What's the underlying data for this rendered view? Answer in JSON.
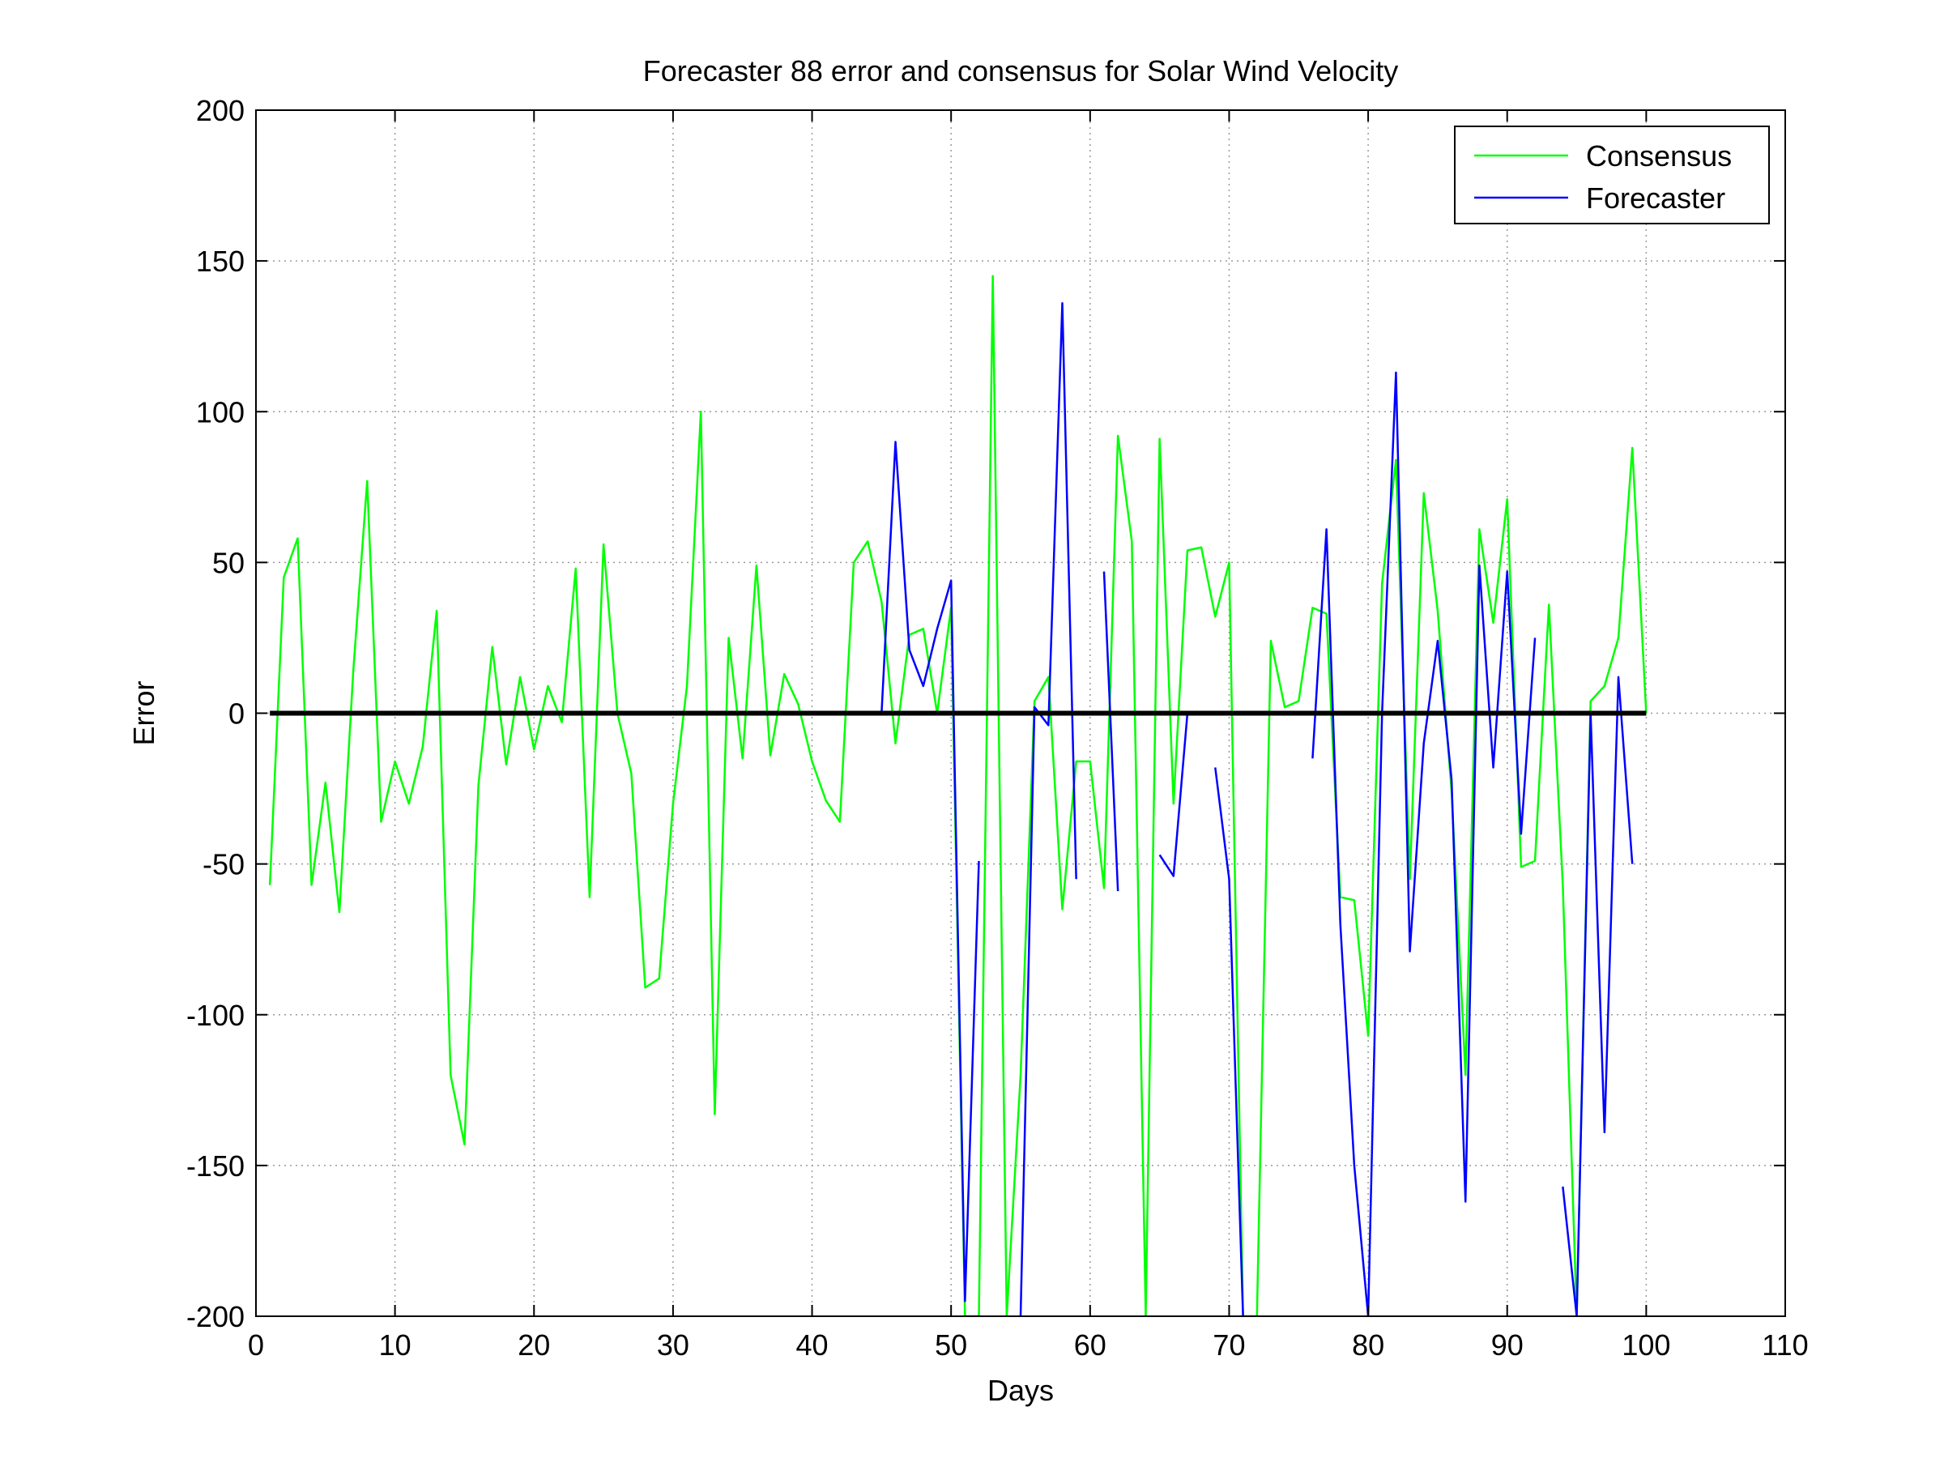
{
  "chart_data": {
    "type": "line",
    "title": "Forecaster 88 error and consensus for Solar Wind Velocity",
    "xlabel": "Days",
    "ylabel": "Error",
    "xlim": [
      0,
      110
    ],
    "ylim": [
      -200,
      200
    ],
    "xticks": [
      0,
      10,
      20,
      30,
      40,
      50,
      60,
      70,
      80,
      90,
      100,
      110
    ],
    "yticks": [
      -200,
      -150,
      -100,
      -50,
      0,
      50,
      100,
      150,
      200
    ],
    "grid": true,
    "legend_position": "top-right",
    "zero_line": {
      "y": 0,
      "x_range": [
        1,
        100
      ],
      "color": "#000000"
    },
    "series": [
      {
        "name": "Consensus",
        "color": "#00ff00",
        "x": [
          1,
          2,
          3,
          4,
          5,
          6,
          7,
          8,
          9,
          10,
          11,
          12,
          13,
          14,
          15,
          16,
          17,
          18,
          19,
          20,
          21,
          22,
          23,
          24,
          25,
          26,
          27,
          28,
          29,
          30,
          31,
          32,
          33,
          34,
          35,
          36,
          37,
          38,
          39,
          40,
          41,
          42,
          43,
          44,
          45,
          46,
          47,
          48,
          49,
          50,
          51,
          52,
          53,
          54,
          55,
          56,
          57,
          58,
          59,
          60,
          61,
          62,
          63,
          64,
          65,
          66,
          67,
          68,
          69,
          70,
          71,
          72,
          73,
          74,
          75,
          76,
          77,
          78,
          79,
          80,
          81,
          82,
          83,
          84,
          85,
          86,
          87,
          88,
          89,
          90,
          91,
          92,
          93,
          94,
          95,
          96,
          97,
          98,
          99,
          100
        ],
        "y": [
          -57,
          45,
          58,
          -57,
          -23,
          -66,
          14,
          77,
          -36,
          -16,
          -30,
          -11,
          34,
          -120,
          -143,
          -24,
          22,
          -17,
          12,
          -12,
          9,
          -3,
          48,
          -61,
          56,
          0,
          -20,
          -91,
          -88,
          -30,
          9,
          100,
          -133,
          25,
          -15,
          49,
          -14,
          13,
          3,
          -16,
          -29,
          -36,
          50,
          57,
          37,
          -10,
          26,
          28,
          0,
          35,
          -200,
          -200,
          145,
          -200,
          -120,
          4,
          12,
          -65,
          -16,
          -16,
          -58,
          92,
          57,
          -200,
          91,
          -30,
          54,
          55,
          32,
          50,
          -200,
          -200,
          24,
          2,
          4,
          35,
          33,
          -61,
          -62,
          -107,
          43,
          84,
          -55,
          73,
          34,
          -26,
          -120,
          61,
          30,
          71,
          -51,
          -49,
          36,
          -57,
          -200,
          4,
          9,
          25,
          88,
          0
        ]
      },
      {
        "name": "Forecaster",
        "color": "#0000ff",
        "x": [
          45,
          46,
          47,
          48,
          49,
          50,
          51,
          52,
          null,
          55,
          56,
          57,
          58,
          59,
          null,
          61,
          62,
          null,
          65,
          66,
          67,
          null,
          69,
          70,
          71,
          null,
          76,
          77,
          78,
          79,
          80,
          81,
          82,
          83,
          84,
          85,
          86,
          87,
          88,
          89,
          90,
          91,
          92,
          null,
          94,
          95,
          96,
          97,
          98,
          99
        ],
        "y": [
          0,
          90,
          21,
          9,
          28,
          44,
          -195,
          -49,
          null,
          -200,
          2,
          -4,
          136,
          -55,
          null,
          47,
          -59,
          null,
          -47,
          -54,
          0,
          null,
          -18,
          -55,
          -200,
          null,
          -15,
          61,
          -70,
          -150,
          -200,
          0,
          113,
          -79,
          -10,
          24,
          -22,
          -162,
          49,
          -18,
          47,
          -40,
          25,
          null,
          -157,
          -200,
          0,
          -139,
          12,
          -50
        ]
      }
    ]
  }
}
